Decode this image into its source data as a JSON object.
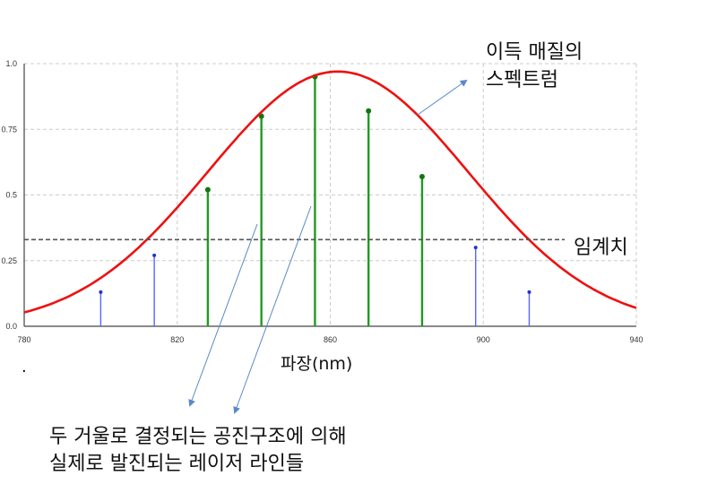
{
  "chart_data": {
    "type": "line",
    "x_ticks": [
      "780",
      "820",
      "860",
      "900",
      "940"
    ],
    "y_ticks": [
      "0.0",
      "0.25",
      "0.5",
      "0.75",
      "1.0"
    ],
    "xlim": [
      780,
      940
    ],
    "ylim": [
      0,
      1
    ],
    "xlabel": "파장(nm)",
    "grid": true,
    "gain_curve": {
      "center": 862,
      "sigma": 34,
      "peak": 0.97
    },
    "threshold": 0.33,
    "lasing_lines": [
      {
        "x": 828,
        "y": 0.52
      },
      {
        "x": 842,
        "y": 0.8
      },
      {
        "x": 856,
        "y": 0.95
      },
      {
        "x": 870,
        "y": 0.82
      },
      {
        "x": 884,
        "y": 0.57
      }
    ],
    "subthreshold_lines": [
      {
        "x": 800,
        "y": 0.13
      },
      {
        "x": 814,
        "y": 0.27
      },
      {
        "x": 898,
        "y": 0.3
      },
      {
        "x": 912,
        "y": 0.13
      }
    ],
    "colors": {
      "gain": "#ee1111",
      "lasing": "#229922",
      "subthreshold": "#5566ff",
      "threshold": "#555555",
      "arrow": "#5a8ac6"
    }
  },
  "annotations": {
    "gain_label": [
      "이득 매질의",
      "스펙트럼"
    ],
    "threshold_label": "임계치",
    "lines_label": [
      "두 거울로 결정되는 공진구조에 의해",
      "실제로 발진되는 레이저 라인들"
    ],
    "stray_mark": "."
  }
}
